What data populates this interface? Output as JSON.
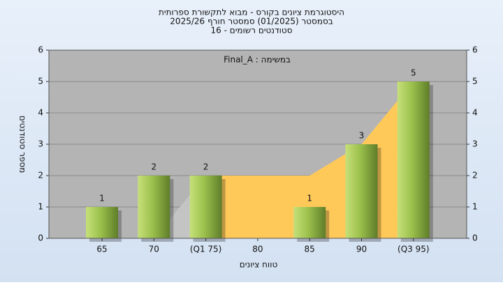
{
  "chart_data": {
    "type": "bar",
    "title": [
      "היסטוגרמת ציונים בקורס - מבוא לתקשורת ספרותית",
      "בסמסטר (01/2025) סמסטר חורף 2025/26",
      "סטודנטים רשומים - 16"
    ],
    "annotation": "במשימה : Final_A",
    "x_label": "טווח ציונים",
    "y_label": "מספר סטודנטים",
    "categories": [
      "65",
      "70",
      "(Q1 75)",
      "80",
      "85",
      "90",
      "(Q3 95)"
    ],
    "values": [
      1,
      2,
      2,
      null,
      1,
      3,
      5
    ],
    "color": "#9bc04a",
    "areas": [
      {
        "color": "#c4c4c4",
        "values": [
          null,
          0,
          2,
          null,
          null,
          null,
          null
        ]
      },
      {
        "color": "#ffc95a",
        "values": [
          null,
          null,
          2,
          2,
          2,
          3,
          5
        ]
      }
    ],
    "ylim": [
      0,
      6
    ],
    "yticks": [
      0,
      1,
      2,
      3,
      4,
      5,
      6
    ],
    "y2ticks": [
      0,
      1,
      2,
      3,
      4,
      5,
      6
    ],
    "grid": true
  }
}
